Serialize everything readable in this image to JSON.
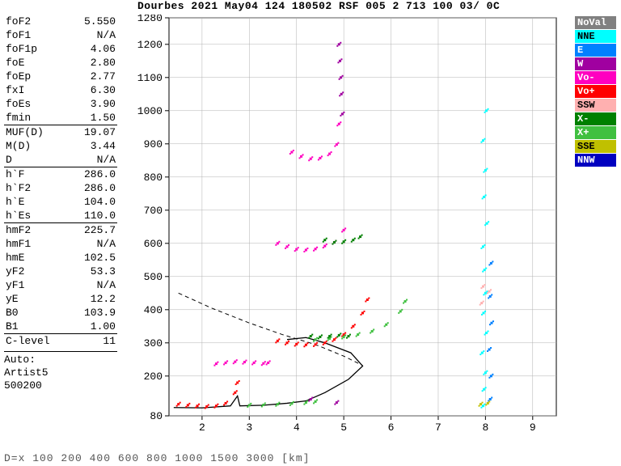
{
  "title": "Dourbes 2021 May04 124 180502 RSF 005 2 713 100 03/ 0C",
  "footer": "D=x  100  200  400  600  800 1000 1500 3000 [km]",
  "params": [
    {
      "k": "foF2",
      "v": "5.550"
    },
    {
      "k": "foF1",
      "v": "N/A"
    },
    {
      "k": "foF1p",
      "v": "4.06"
    },
    {
      "k": "foE",
      "v": "2.80"
    },
    {
      "k": "foEp",
      "v": "2.77"
    },
    {
      "k": "fxI",
      "v": "6.30"
    },
    {
      "k": "foEs",
      "v": "3.90"
    },
    {
      "k": "fmin",
      "v": "1.50"
    },
    {
      "k": "MUF(D)",
      "v": "19.07",
      "sep": true
    },
    {
      "k": "M(D)",
      "v": "3.44"
    },
    {
      "k": "D",
      "v": "N/A"
    },
    {
      "k": "h`F",
      "v": "286.0",
      "sep": true
    },
    {
      "k": "h`F2",
      "v": "286.0"
    },
    {
      "k": "h`E",
      "v": "104.0"
    },
    {
      "k": "h`Es",
      "v": "110.0"
    },
    {
      "k": "hmF2",
      "v": "225.7",
      "sep": true
    },
    {
      "k": "hmF1",
      "v": "N/A"
    },
    {
      "k": "hmE",
      "v": "102.5"
    },
    {
      "k": "yF2",
      "v": "53.3"
    },
    {
      "k": "yF1",
      "v": "N/A"
    },
    {
      "k": "yE",
      "v": "12.2"
    },
    {
      "k": "B0",
      "v": "103.9"
    },
    {
      "k": "B1",
      "v": "1.00"
    },
    {
      "k": "C-level",
      "v": "11",
      "sep": true
    }
  ],
  "auto": [
    "Auto:",
    "Artist5",
    "500200"
  ],
  "legend": [
    {
      "t": "NoVal",
      "bg": "#808080",
      "fg": "#fff"
    },
    {
      "t": "NNE",
      "bg": "#00ffff",
      "fg": "#000"
    },
    {
      "t": "E",
      "bg": "#0080ff",
      "fg": "#fff"
    },
    {
      "t": "W",
      "bg": "#a000a0",
      "fg": "#fff"
    },
    {
      "t": "Vo-",
      "bg": "#ff00c0",
      "fg": "#fff"
    },
    {
      "t": "Vo+",
      "bg": "#ff0000",
      "fg": "#fff"
    },
    {
      "t": "SSW",
      "bg": "#ffb0b0",
      "fg": "#000"
    },
    {
      "t": "X-",
      "bg": "#008000",
      "fg": "#fff"
    },
    {
      "t": "X+",
      "bg": "#40c040",
      "fg": "#fff"
    },
    {
      "t": "SSE",
      "bg": "#c0c000",
      "fg": "#000"
    },
    {
      "t": "NNW",
      "bg": "#0000c0",
      "fg": "#fff"
    }
  ],
  "chart": {
    "xlim": [
      1.3,
      9.5
    ],
    "ylim": [
      80,
      1280
    ],
    "xticks": [
      2,
      3,
      4,
      5,
      6,
      7,
      8,
      9
    ],
    "yticks": [
      80,
      200,
      300,
      400,
      500,
      600,
      700,
      800,
      900,
      1000,
      1100,
      1200,
      1280
    ],
    "grid_color": "#b0b0b0",
    "axis_color": "#000",
    "bg": "#ffffff",
    "curve_solid": [
      [
        1.4,
        105
      ],
      [
        2.0,
        104
      ],
      [
        2.6,
        110
      ],
      [
        2.75,
        140
      ],
      [
        2.8,
        110
      ],
      [
        3.3,
        112
      ],
      [
        3.8,
        118
      ],
      [
        4.2,
        125
      ],
      [
        4.6,
        150
      ],
      [
        5.1,
        190
      ],
      [
        5.4,
        230
      ],
      [
        5.15,
        270
      ],
      [
        4.6,
        300
      ],
      [
        4.2,
        316
      ],
      [
        3.8,
        310
      ]
    ],
    "curve_dash": [
      [
        1.5,
        450
      ],
      [
        2.2,
        405
      ],
      [
        3.0,
        360
      ],
      [
        3.7,
        325
      ],
      [
        4.4,
        295
      ],
      [
        5.0,
        260
      ],
      [
        5.4,
        232
      ]
    ],
    "clusters": [
      {
        "c": "#ff0000",
        "pts": [
          [
            1.5,
            115
          ],
          [
            1.7,
            112
          ],
          [
            1.9,
            110
          ],
          [
            2.1,
            108
          ],
          [
            2.3,
            110
          ],
          [
            2.5,
            118
          ],
          [
            2.7,
            150
          ],
          [
            2.75,
            180
          ]
        ]
      },
      {
        "c": "#ff0000",
        "pts": [
          [
            3.6,
            306
          ],
          [
            3.8,
            300
          ],
          [
            4.0,
            296
          ],
          [
            4.2,
            294
          ],
          [
            4.4,
            295
          ],
          [
            4.6,
            300
          ],
          [
            4.8,
            310
          ],
          [
            5.0,
            325
          ],
          [
            5.2,
            350
          ],
          [
            5.4,
            390
          ],
          [
            5.5,
            430
          ]
        ]
      },
      {
        "c": "#40c040",
        "pts": [
          [
            3.0,
            112
          ],
          [
            3.3,
            113
          ],
          [
            3.6,
            115
          ],
          [
            3.9,
            117
          ],
          [
            4.2,
            120
          ],
          [
            4.4,
            123
          ]
        ]
      },
      {
        "c": "#40c040",
        "pts": [
          [
            4.4,
            310
          ],
          [
            4.7,
            313
          ],
          [
            5.0,
            318
          ],
          [
            5.3,
            325
          ],
          [
            5.6,
            335
          ],
          [
            5.9,
            355
          ],
          [
            6.2,
            395
          ],
          [
            6.3,
            425
          ]
        ]
      },
      {
        "c": "#008000",
        "pts": [
          [
            4.3,
            320
          ],
          [
            4.5,
            318
          ],
          [
            4.7,
            320
          ],
          [
            4.9,
            323
          ],
          [
            5.1,
            320
          ]
        ]
      },
      {
        "c": "#ff00c0",
        "pts": [
          [
            2.3,
            237
          ],
          [
            2.5,
            240
          ],
          [
            2.7,
            243
          ],
          [
            2.9,
            242
          ],
          [
            3.1,
            240
          ],
          [
            3.3,
            238
          ],
          [
            3.4,
            240
          ]
        ]
      },
      {
        "c": "#ff00c0",
        "pts": [
          [
            3.6,
            600
          ],
          [
            3.8,
            590
          ],
          [
            4.0,
            582
          ],
          [
            4.2,
            580
          ],
          [
            4.4,
            583
          ],
          [
            4.6,
            592
          ],
          [
            4.8,
            603
          ],
          [
            5.0,
            640
          ]
        ]
      },
      {
        "c": "#ff00c0",
        "pts": [
          [
            3.9,
            875
          ],
          [
            4.1,
            862
          ],
          [
            4.3,
            855
          ],
          [
            4.5,
            857
          ],
          [
            4.7,
            870
          ],
          [
            4.85,
            898
          ],
          [
            4.9,
            960
          ]
        ]
      },
      {
        "c": "#008000",
        "pts": [
          [
            4.6,
            610
          ],
          [
            4.8,
            603
          ],
          [
            5.0,
            605
          ],
          [
            5.2,
            610
          ],
          [
            5.35,
            620
          ]
        ]
      },
      {
        "c": "#a000a0",
        "pts": [
          [
            4.9,
            1200
          ],
          [
            4.92,
            1150
          ],
          [
            4.94,
            1100
          ],
          [
            4.95,
            1050
          ],
          [
            4.97,
            990
          ],
          [
            4.85,
            120
          ],
          [
            4.3,
            130
          ]
        ]
      },
      {
        "c": "#00ffff",
        "pts": [
          [
            7.95,
            110
          ],
          [
            7.97,
            160
          ],
          [
            8.0,
            210
          ],
          [
            7.93,
            270
          ],
          [
            8.02,
            330
          ],
          [
            7.96,
            390
          ],
          [
            8.0,
            450
          ],
          [
            7.98,
            520
          ],
          [
            7.95,
            590
          ],
          [
            8.03,
            660
          ],
          [
            7.97,
            740
          ],
          [
            8.0,
            820
          ],
          [
            7.95,
            910
          ],
          [
            8.02,
            1000
          ]
        ]
      },
      {
        "c": "#0080ff",
        "pts": [
          [
            8.1,
            130
          ],
          [
            8.12,
            200
          ],
          [
            8.08,
            280
          ],
          [
            8.13,
            360
          ],
          [
            8.1,
            440
          ],
          [
            8.12,
            540
          ]
        ]
      },
      {
        "c": "#ffb0b0",
        "pts": [
          [
            7.92,
            420
          ],
          [
            8.08,
            455
          ],
          [
            7.95,
            470
          ]
        ]
      },
      {
        "c": "#c0c000",
        "pts": [
          [
            7.9,
            115
          ],
          [
            8.05,
            118
          ]
        ]
      }
    ]
  }
}
